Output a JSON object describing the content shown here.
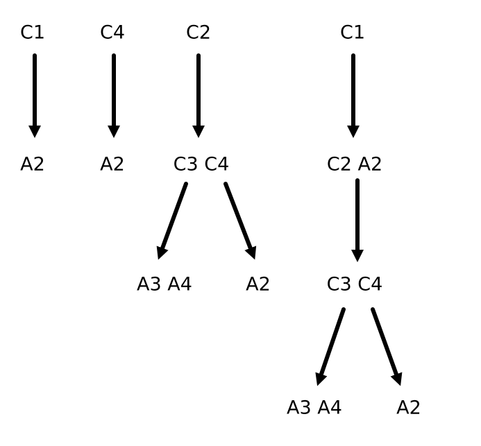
{
  "diagram": {
    "line_color": "#000000",
    "background_color": "#ffffff",
    "nodes": [
      {
        "id": "t1-root",
        "text": "C1"
      },
      {
        "id": "t1-leaf",
        "text": "A2"
      },
      {
        "id": "t2-root",
        "text": "C4"
      },
      {
        "id": "t2-leaf",
        "text": "A2"
      },
      {
        "id": "t3-root",
        "text": "C2"
      },
      {
        "id": "t3-mid",
        "text": "C3 C4"
      },
      {
        "id": "t3-left",
        "text": "A3 A4"
      },
      {
        "id": "t3-right",
        "text": "A2"
      },
      {
        "id": "t4-root",
        "text": "C1"
      },
      {
        "id": "t4-mid1",
        "text": "C2 A2"
      },
      {
        "id": "t4-mid2",
        "text": "C3 C4"
      },
      {
        "id": "t4-left",
        "text": "A3 A4"
      },
      {
        "id": "t4-right",
        "text": "A2"
      }
    ],
    "edges": [
      {
        "from": "t1-root",
        "to": "t1-leaf"
      },
      {
        "from": "t2-root",
        "to": "t2-leaf"
      },
      {
        "from": "t3-root",
        "to": "t3-mid"
      },
      {
        "from": "t3-mid",
        "to": "t3-left"
      },
      {
        "from": "t3-mid",
        "to": "t3-right"
      },
      {
        "from": "t4-root",
        "to": "t4-mid1"
      },
      {
        "from": "t4-mid1",
        "to": "t4-mid2"
      },
      {
        "from": "t4-mid2",
        "to": "t4-left"
      },
      {
        "from": "t4-mid2",
        "to": "t4-right"
      }
    ]
  }
}
